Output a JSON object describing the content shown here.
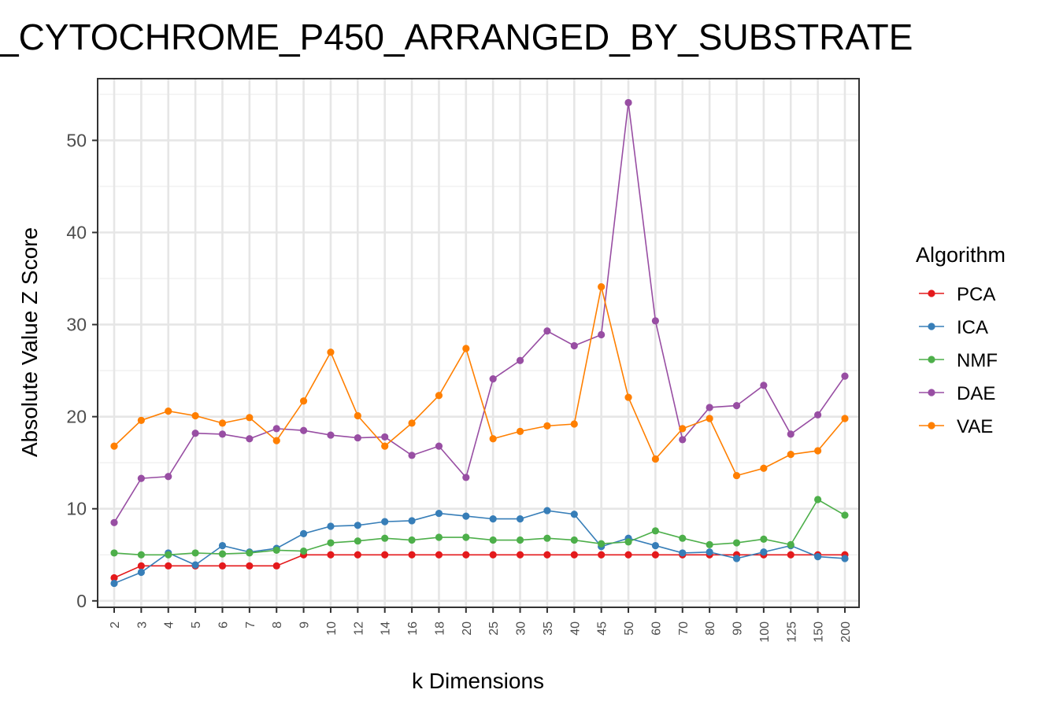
{
  "chart_data": {
    "type": "line",
    "title": "_CYTOCHROME_P450_ARRANGED_BY_SUBSTRATE",
    "xlabel": "k Dimensions",
    "ylabel": "Absolute Value Z Score",
    "categories": [
      "2",
      "3",
      "4",
      "5",
      "6",
      "7",
      "8",
      "9",
      "10",
      "12",
      "14",
      "16",
      "18",
      "20",
      "25",
      "30",
      "35",
      "40",
      "45",
      "50",
      "60",
      "70",
      "80",
      "90",
      "100",
      "125",
      "150",
      "200"
    ],
    "yticks": [
      0,
      10,
      20,
      30,
      40,
      50
    ],
    "ylim": [
      -0.7,
      56.7
    ],
    "grid": true,
    "legend_title": "Algorithm",
    "legend_position": "right",
    "series": [
      {
        "name": "PCA",
        "color": "#e41a1c",
        "values": [
          2.5,
          3.8,
          3.8,
          3.8,
          3.8,
          3.8,
          3.8,
          5.0,
          5.0,
          5.0,
          5.0,
          5.0,
          5.0,
          5.0,
          5.0,
          5.0,
          5.0,
          5.0,
          5.0,
          5.0,
          5.0,
          5.0,
          5.0,
          5.0,
          5.0,
          5.0,
          5.0,
          5.0
        ]
      },
      {
        "name": "ICA",
        "color": "#377eb8",
        "values": [
          1.9,
          3.1,
          5.2,
          3.9,
          6.0,
          5.3,
          5.7,
          7.3,
          8.1,
          8.2,
          8.6,
          8.7,
          9.5,
          9.2,
          8.9,
          8.9,
          9.8,
          9.4,
          5.9,
          6.8,
          6.0,
          5.2,
          5.3,
          4.6,
          5.3,
          6.0,
          4.8,
          4.6
        ]
      },
      {
        "name": "NMF",
        "color": "#4daf4a",
        "values": [
          5.2,
          5.0,
          5.0,
          5.2,
          5.1,
          5.2,
          5.5,
          5.4,
          6.3,
          6.5,
          6.8,
          6.6,
          6.9,
          6.9,
          6.6,
          6.6,
          6.8,
          6.6,
          6.2,
          6.4,
          7.6,
          6.8,
          6.1,
          6.3,
          6.7,
          6.1,
          11.0,
          9.3
        ]
      },
      {
        "name": "DAE",
        "color": "#984ea3",
        "values": [
          8.5,
          13.3,
          13.5,
          18.2,
          18.1,
          17.6,
          18.7,
          18.5,
          18.0,
          17.7,
          17.8,
          15.8,
          16.8,
          13.4,
          24.1,
          26.1,
          29.3,
          27.7,
          28.9,
          54.1,
          30.4,
          17.5,
          21.0,
          21.2,
          23.4,
          18.1,
          20.2,
          24.4
        ]
      },
      {
        "name": "VAE",
        "color": "#ff7f00",
        "values": [
          16.8,
          19.6,
          20.6,
          20.1,
          19.3,
          19.9,
          17.4,
          21.7,
          27.0,
          20.1,
          16.8,
          19.3,
          22.3,
          27.4,
          17.6,
          18.4,
          19.0,
          19.2,
          34.1,
          22.1,
          15.4,
          18.7,
          19.8,
          13.6,
          14.4,
          15.9,
          16.3,
          19.8
        ]
      }
    ]
  }
}
